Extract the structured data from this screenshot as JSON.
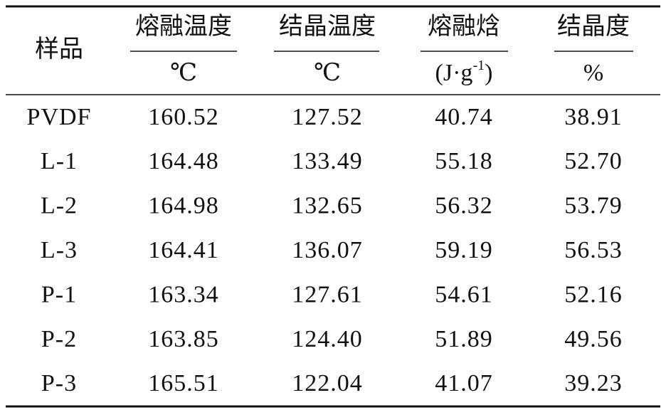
{
  "table": {
    "header": {
      "sample": "样品",
      "columns": [
        {
          "name": "熔融温度",
          "unit": "℃"
        },
        {
          "name": "结晶温度",
          "unit": "℃"
        },
        {
          "name": "熔融焓",
          "unit": {
            "open": "(J·g",
            "sup": "-1",
            "close": ")"
          }
        },
        {
          "name": "结晶度",
          "unit": "%"
        }
      ]
    },
    "rows": [
      [
        "PVDF",
        "160.52",
        "127.52",
        "40.74",
        "38.91"
      ],
      [
        "L-1",
        "164.48",
        "133.49",
        "55.18",
        "52.70"
      ],
      [
        "L-2",
        "164.98",
        "132.65",
        "56.32",
        "53.79"
      ],
      [
        "L-3",
        "164.41",
        "136.07",
        "59.19",
        "56.53"
      ],
      [
        "P-1",
        "163.34",
        "127.61",
        "54.61",
        "52.16"
      ],
      [
        "P-2",
        "163.85",
        "124.40",
        "51.89",
        "49.56"
      ],
      [
        "P-3",
        "165.51",
        "122.04",
        "41.07",
        "39.23"
      ]
    ]
  }
}
